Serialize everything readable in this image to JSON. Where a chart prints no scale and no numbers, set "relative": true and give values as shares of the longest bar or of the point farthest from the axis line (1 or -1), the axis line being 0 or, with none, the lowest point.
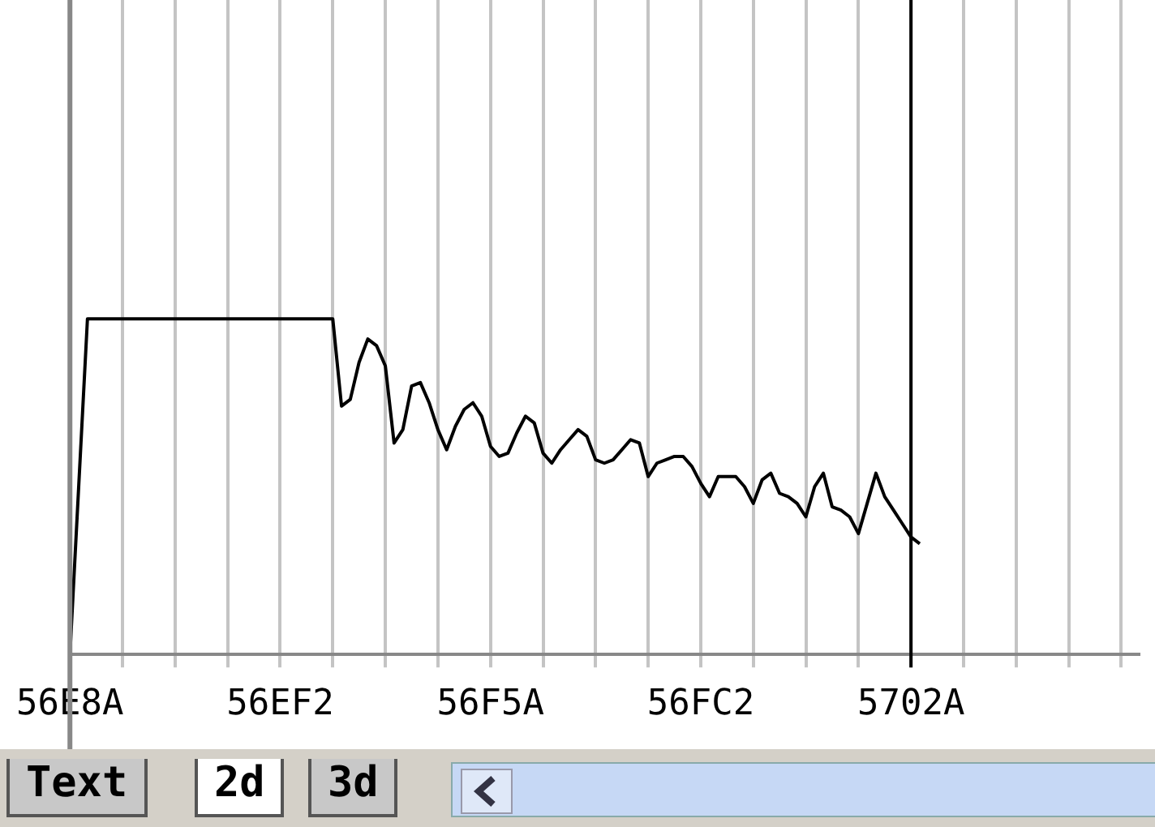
{
  "chart_data": {
    "type": "line",
    "relative": true,
    "grid": "x",
    "legend": false,
    "marker": "none",
    "line_style": "solid",
    "categories": [
      "56E8A",
      null,
      null,
      null,
      null,
      null,
      null,
      null,
      null,
      null,
      null,
      null,
      null,
      null,
      null,
      null,
      null,
      null,
      null,
      null,
      null,
      null,
      null,
      null,
      "56EF2",
      null,
      null,
      null,
      null,
      null,
      null,
      null,
      null,
      null,
      null,
      null,
      null,
      null,
      null,
      null,
      null,
      null,
      null,
      null,
      null,
      null,
      null,
      null,
      "56F5A",
      null,
      null,
      null,
      null,
      null,
      null,
      null,
      null,
      null,
      null,
      null,
      null,
      null,
      null,
      null,
      null,
      null,
      null,
      null,
      null,
      null,
      null,
      null,
      "56FC2",
      null,
      null,
      null,
      null,
      null,
      null,
      null,
      null,
      null,
      null,
      null,
      null,
      null,
      null,
      null,
      null,
      null,
      null,
      null,
      null,
      null,
      null,
      null,
      "5702A",
      null,
      null,
      null,
      null,
      null,
      null,
      null,
      null,
      null,
      null,
      null,
      null,
      null,
      null,
      null,
      null,
      null,
      null,
      null,
      null,
      null,
      null,
      null,
      null,
      null,
      null
    ],
    "ref_lines": [
      {
        "axis": "x",
        "value": "5702A",
        "color": "#000000"
      }
    ],
    "annotations": [
      "Text",
      "2d",
      "3d"
    ],
    "series": [
      {
        "color": "#000000",
        "values": [
          0,
          0.5,
          1,
          1,
          1,
          1,
          1,
          1,
          1,
          1,
          1,
          1,
          1,
          1,
          1,
          1,
          1,
          1,
          1,
          1,
          1,
          1,
          1,
          1,
          1,
          1,
          1,
          1,
          1,
          1,
          1,
          0.74,
          0.76,
          0.87,
          0.94,
          0.92,
          0.86,
          0.63,
          0.67,
          0.8,
          0.81,
          0.75,
          0.67,
          0.61,
          0.68,
          0.73,
          0.75,
          0.71,
          0.62,
          0.59,
          0.6,
          0.66,
          0.71,
          0.69,
          0.6,
          0.57,
          0.61,
          0.64,
          0.67,
          0.65,
          0.58,
          0.57,
          0.58,
          0.61,
          0.64,
          0.63,
          0.53,
          0.57,
          0.58,
          0.59,
          0.59,
          0.56,
          0.51,
          0.47,
          0.53,
          0.53,
          0.53,
          0.5,
          0.45,
          0.52,
          0.54,
          0.48,
          0.47,
          0.45,
          0.41,
          0.5,
          0.54,
          0.44,
          0.43,
          0.41,
          0.36,
          0.45,
          0.54,
          0.47,
          0.43,
          0.39,
          0.35,
          0.33,
          null,
          null,
          null,
          null,
          null,
          null,
          null,
          null,
          null,
          null,
          null,
          null,
          null,
          null,
          null,
          null,
          null,
          null,
          null,
          null,
          null,
          null,
          null,
          null,
          null
        ]
      }
    ]
  }
}
